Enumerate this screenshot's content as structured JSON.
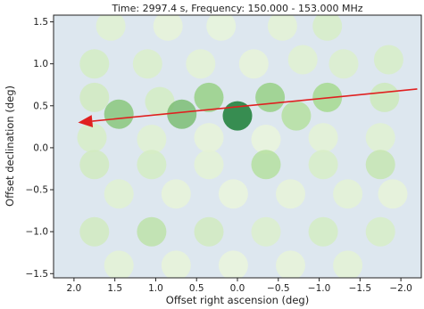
{
  "chart_data": {
    "type": "scatter",
    "title": "Time: 2997.4 s, Frequency: 150.000 - 153.000 MHz",
    "xlabel": "Offset right ascension (deg)",
    "ylabel": "Offset declination (deg)",
    "xlim": [
      2.25,
      -2.25
    ],
    "ylim": [
      -1.55,
      1.58
    ],
    "x_ticks": [
      2.0,
      1.5,
      1.0,
      0.5,
      0.0,
      -0.5,
      -1.0,
      -1.5,
      -2.0
    ],
    "x_tick_labels": [
      "2.0",
      "1.5",
      "1.0",
      "0.5",
      "0.0",
      "−0.5",
      "−1.0",
      "−1.5",
      "−2.0"
    ],
    "y_ticks": [
      1.5,
      1.0,
      0.5,
      0.0,
      -0.5,
      -1.0,
      -1.5
    ],
    "y_tick_labels": [
      "1.5",
      "1.0",
      "0.5",
      "0.0",
      "−0.5",
      "−1.0",
      "−1.5"
    ],
    "beam_radius_deg": 0.18,
    "colormap": {
      "low": "#f3f8e6",
      "mid": "#a6d98f",
      "high": "#1a7d35"
    },
    "background_color": "#dde7ef",
    "arrow_color": "#e02020",
    "arrow": {
      "start": [
        -2.2,
        0.7
      ],
      "end": [
        1.95,
        0.3
      ]
    },
    "beams": [
      {
        "x": 1.55,
        "y": 1.45,
        "v": 0.12
      },
      {
        "x": 0.85,
        "y": 1.45,
        "v": 0.08
      },
      {
        "x": 0.2,
        "y": 1.45,
        "v": 0.07
      },
      {
        "x": -0.55,
        "y": 1.45,
        "v": 0.1
      },
      {
        "x": -1.1,
        "y": 1.45,
        "v": 0.18
      },
      {
        "x": 1.75,
        "y": 1.0,
        "v": 0.2
      },
      {
        "x": 1.1,
        "y": 1.0,
        "v": 0.16
      },
      {
        "x": 0.45,
        "y": 1.0,
        "v": 0.1
      },
      {
        "x": -0.2,
        "y": 1.0,
        "v": 0.08
      },
      {
        "x": -0.8,
        "y": 1.05,
        "v": 0.12
      },
      {
        "x": -1.3,
        "y": 1.0,
        "v": 0.15
      },
      {
        "x": -1.85,
        "y": 1.05,
        "v": 0.18
      },
      {
        "x": 1.75,
        "y": 0.6,
        "v": 0.22
      },
      {
        "x": 0.95,
        "y": 0.55,
        "v": 0.2
      },
      {
        "x": 0.35,
        "y": 0.6,
        "v": 0.55
      },
      {
        "x": -0.4,
        "y": 0.6,
        "v": 0.55
      },
      {
        "x": -1.1,
        "y": 0.6,
        "v": 0.5
      },
      {
        "x": -1.8,
        "y": 0.6,
        "v": 0.25
      },
      {
        "x": 1.45,
        "y": 0.4,
        "v": 0.6
      },
      {
        "x": 0.68,
        "y": 0.4,
        "v": 0.65
      },
      {
        "x": 0.0,
        "y": 0.38,
        "v": 1.0
      },
      {
        "x": -0.72,
        "y": 0.38,
        "v": 0.4
      },
      {
        "x": 1.78,
        "y": 0.12,
        "v": 0.18
      },
      {
        "x": 1.05,
        "y": 0.1,
        "v": 0.12
      },
      {
        "x": 0.35,
        "y": 0.12,
        "v": 0.08
      },
      {
        "x": -0.35,
        "y": 0.1,
        "v": 0.06
      },
      {
        "x": -1.05,
        "y": 0.12,
        "v": 0.1
      },
      {
        "x": -1.75,
        "y": 0.12,
        "v": 0.12
      },
      {
        "x": 1.75,
        "y": -0.2,
        "v": 0.22
      },
      {
        "x": 1.05,
        "y": -0.2,
        "v": 0.2
      },
      {
        "x": 0.35,
        "y": -0.2,
        "v": 0.1
      },
      {
        "x": -0.35,
        "y": -0.2,
        "v": 0.4
      },
      {
        "x": -1.05,
        "y": -0.2,
        "v": 0.18
      },
      {
        "x": -1.75,
        "y": -0.2,
        "v": 0.3
      },
      {
        "x": 1.45,
        "y": -0.55,
        "v": 0.12
      },
      {
        "x": 0.75,
        "y": -0.55,
        "v": 0.08
      },
      {
        "x": 0.05,
        "y": -0.55,
        "v": 0.06
      },
      {
        "x": -0.65,
        "y": -0.55,
        "v": 0.08
      },
      {
        "x": -1.35,
        "y": -0.55,
        "v": 0.1
      },
      {
        "x": -1.9,
        "y": -0.55,
        "v": 0.08
      },
      {
        "x": 1.75,
        "y": -1.0,
        "v": 0.22
      },
      {
        "x": 1.05,
        "y": -1.0,
        "v": 0.35
      },
      {
        "x": 0.35,
        "y": -1.0,
        "v": 0.22
      },
      {
        "x": -0.35,
        "y": -1.0,
        "v": 0.15
      },
      {
        "x": -1.05,
        "y": -1.0,
        "v": 0.2
      },
      {
        "x": -1.75,
        "y": -1.0,
        "v": 0.18
      },
      {
        "x": 1.45,
        "y": -1.4,
        "v": 0.1
      },
      {
        "x": 0.75,
        "y": -1.4,
        "v": 0.08
      },
      {
        "x": 0.05,
        "y": -1.4,
        "v": 0.06
      },
      {
        "x": -0.65,
        "y": -1.4,
        "v": 0.08
      },
      {
        "x": -1.35,
        "y": -1.4,
        "v": 0.1
      }
    ]
  }
}
